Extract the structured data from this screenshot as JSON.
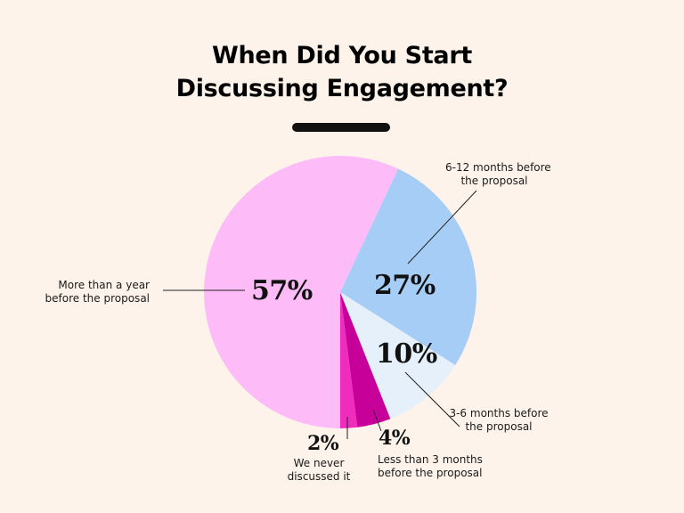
{
  "chart_data": {
    "type": "pie",
    "title_lines": [
      "When Did You Start",
      "Discussing Engagement?"
    ],
    "slices": [
      {
        "label_lines": [
          "More than a year",
          "before the proposal"
        ],
        "value": 57,
        "value_label": "57%",
        "color": "#fdbcf8"
      },
      {
        "label_lines": [
          "6-12 months before",
          "the proposal"
        ],
        "value": 27,
        "value_label": "27%",
        "color": "#a6cdf6"
      },
      {
        "label_lines": [
          "3-6 months before",
          "the proposal"
        ],
        "value": 10,
        "value_label": "10%",
        "color": "#e6f0fb"
      },
      {
        "label_lines": [
          "Less than 3 months",
          "before the proposal"
        ],
        "value": 4,
        "value_label": "4%",
        "color": "#c7009a"
      },
      {
        "label_lines": [
          "We never",
          "discussed it"
        ],
        "value": 2,
        "value_label": "2%",
        "color": "#f02cbf"
      }
    ]
  }
}
